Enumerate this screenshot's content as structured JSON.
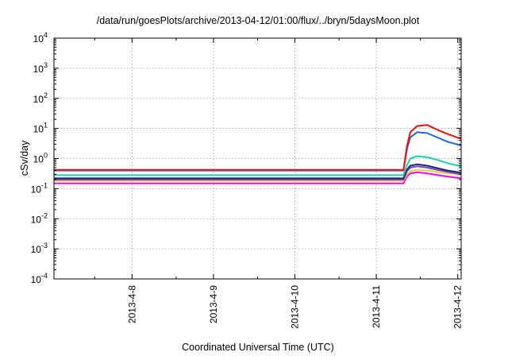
{
  "chart_data": {
    "type": "line",
    "title": "/data/run/goesPlots/archive/2013-04-12/01:00/flux/../bryn/5daysMoon.plot",
    "xlabel": "Coordinated Universal Time (UTC)",
    "ylabel": "cSv/day",
    "y_scale": "log",
    "ylim": [
      0.0001,
      10000
    ],
    "y_ticks": [
      {
        "value": 0.0001,
        "base": "10",
        "exp": "-4"
      },
      {
        "value": 0.001,
        "base": "10",
        "exp": "-3"
      },
      {
        "value": 0.01,
        "base": "10",
        "exp": "-2"
      },
      {
        "value": 0.1,
        "base": "10",
        "exp": "-1"
      },
      {
        "value": 1,
        "base": "10",
        "exp": "0"
      },
      {
        "value": 10,
        "base": "10",
        "exp": "1"
      },
      {
        "value": 100,
        "base": "10",
        "exp": "2"
      },
      {
        "value": 1000,
        "base": "10",
        "exp": "3"
      },
      {
        "value": 10000,
        "base": "10",
        "exp": "4"
      }
    ],
    "xlim": [
      "2013-04-07 01:00",
      "2013-04-12 01:00"
    ],
    "x_ticks": [
      "2013-4-8",
      "2013-4-9",
      "2013-4-10",
      "2013-4-11",
      "2013-4-12"
    ],
    "grid": true,
    "x": [
      "2013-04-07 01:00",
      "2013-04-08 00:00",
      "2013-04-09 00:00",
      "2013-04-10 00:00",
      "2013-04-11 00:00",
      "2013-04-11 08:00",
      "2013-04-11 09:00",
      "2013-04-11 10:00",
      "2013-04-11 12:00",
      "2013-04-11 15:00",
      "2013-04-11 18:00",
      "2013-04-11 21:00",
      "2013-04-12 01:00"
    ],
    "series": [
      {
        "color": "#ff00ff",
        "values": [
          0.15,
          0.15,
          0.15,
          0.15,
          0.15,
          0.15,
          0.25,
          0.32,
          0.35,
          0.32,
          0.28,
          0.25,
          0.22
        ]
      },
      {
        "color": "#ffcc44",
        "values": [
          0.18,
          0.18,
          0.18,
          0.18,
          0.18,
          0.18,
          0.3,
          0.38,
          0.42,
          0.4,
          0.36,
          0.32,
          0.29
        ]
      },
      {
        "color": "#7744bb",
        "values": [
          0.2,
          0.2,
          0.2,
          0.2,
          0.2,
          0.2,
          0.38,
          0.5,
          0.55,
          0.5,
          0.42,
          0.36,
          0.3
        ]
      },
      {
        "color": "#1a2a7a",
        "values": [
          0.22,
          0.22,
          0.22,
          0.22,
          0.22,
          0.22,
          0.42,
          0.58,
          0.64,
          0.58,
          0.48,
          0.4,
          0.34
        ]
      },
      {
        "color": "#22ccaa",
        "values": [
          0.28,
          0.28,
          0.28,
          0.28,
          0.28,
          0.28,
          0.6,
          1.0,
          1.2,
          1.1,
          0.9,
          0.7,
          0.55
        ]
      },
      {
        "color": "#2266dd",
        "values": [
          0.4,
          0.4,
          0.4,
          0.4,
          0.4,
          0.4,
          2.0,
          5.0,
          7.5,
          7.0,
          5.0,
          3.6,
          2.7
        ]
      },
      {
        "color": "#ee1111",
        "values": [
          0.42,
          0.42,
          0.42,
          0.42,
          0.42,
          0.42,
          2.5,
          7.5,
          12.0,
          13.0,
          9.0,
          6.5,
          4.5
        ]
      }
    ]
  }
}
